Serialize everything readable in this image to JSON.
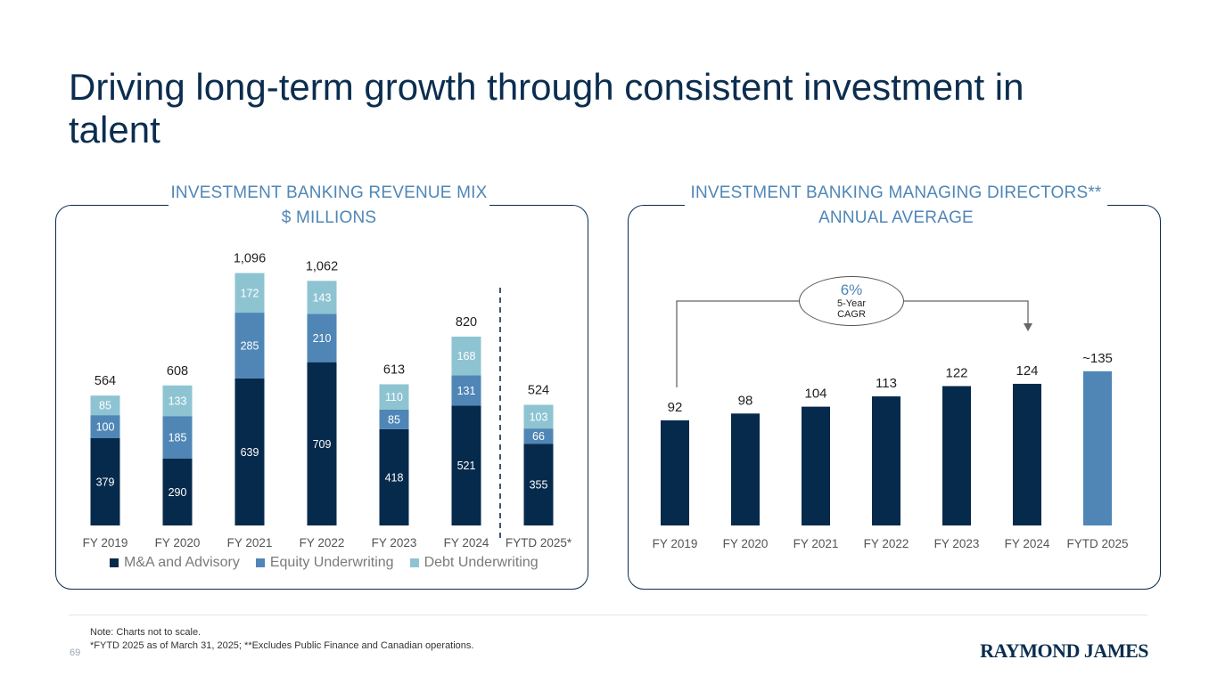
{
  "page": {
    "title": "Driving long-term growth through consistent investment in talent",
    "page_number": "69",
    "note_line1": "Note: Charts not to scale.",
    "note_line2": "*FYTD 2025 as of March 31, 2025; **Excludes Public Finance and Canadian operations.",
    "logo_text": "RAYMOND JAMES"
  },
  "left_panel": {
    "heading_line1": "INVESTMENT BANKING REVENUE MIX",
    "heading_line2": "$ MILLIONS"
  },
  "right_panel": {
    "heading_line1": "INVESTMENT BANKING MANAGING DIRECTORS**",
    "heading_line2": "ANNUAL AVERAGE",
    "cagr_value": "6%",
    "cagr_line1": "5-Year",
    "cagr_line2": "CAGR"
  },
  "colors": {
    "navy": "#062a4c",
    "mid_blue": "#4f86b6",
    "light_blue": "#8ec4d2",
    "heading_blue": "#4f86b6"
  },
  "chart_data": [
    {
      "type": "bar",
      "stacked": true,
      "title": "INVESTMENT BANKING REVENUE MIX $ MILLIONS",
      "categories": [
        "FY 2019",
        "FY 2020",
        "FY 2021",
        "FY 2022",
        "FY 2023",
        "FY 2024",
        "FYTD 2025*"
      ],
      "series": [
        {
          "name": "M&A and Advisory",
          "values": [
            379,
            290,
            639,
            709,
            418,
            521,
            355
          ]
        },
        {
          "name": "Equity Underwriting",
          "values": [
            100,
            185,
            285,
            210,
            85,
            131,
            66
          ]
        },
        {
          "name": "Debt Underwriting",
          "values": [
            85,
            133,
            172,
            143,
            110,
            168,
            103
          ]
        }
      ],
      "totals": [
        "564",
        "608",
        "1,096",
        "1,062",
        "613",
        "820",
        "524"
      ],
      "legend": [
        "M&A and Advisory",
        "Equity Underwriting",
        "Debt Underwriting"
      ],
      "legend_position": "bottom",
      "ylim": [
        0,
        1100
      ]
    },
    {
      "type": "bar",
      "title": "INVESTMENT BANKING MANAGING DIRECTORS** ANNUAL AVERAGE",
      "categories": [
        "FY 2019",
        "FY 2020",
        "FY 2021",
        "FY 2022",
        "FY 2023",
        "FY 2024",
        "FYTD 2025"
      ],
      "values": [
        92,
        98,
        104,
        113,
        122,
        124,
        135
      ],
      "value_labels": [
        "92",
        "98",
        "104",
        "113",
        "122",
        "124",
        "~135"
      ],
      "annotation": "6% 5-Year CAGR",
      "ylim": [
        0,
        140
      ]
    }
  ]
}
